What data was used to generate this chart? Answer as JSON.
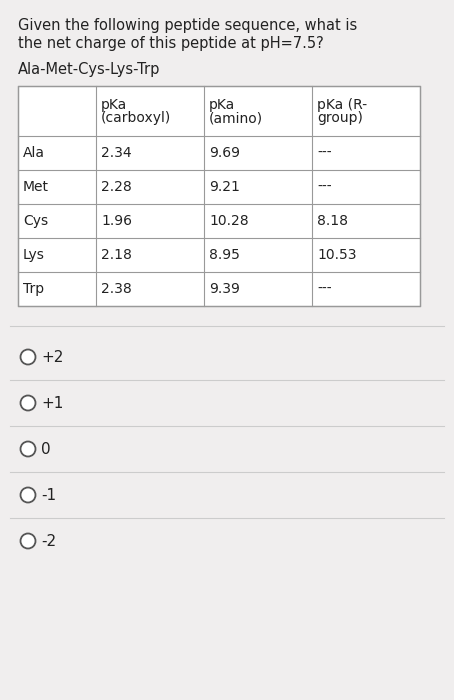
{
  "title_line1": "Given the following peptide sequence, what is",
  "title_line2": "the net charge of this peptide at pH=7.5?",
  "subtitle": "Ala-Met-Cys-Lys-Trp",
  "table_headers": [
    "",
    "pKa\n(carboxyl)",
    "pKa\n(amino)",
    "pKa (R-\ngroup)"
  ],
  "table_rows": [
    [
      "Ala",
      "2.34",
      "9.69",
      "---"
    ],
    [
      "Met",
      "2.28",
      "9.21",
      "---"
    ],
    [
      "Cys",
      "1.96",
      "10.28",
      "8.18"
    ],
    [
      "Lys",
      "2.18",
      "8.95",
      "10.53"
    ],
    [
      "Trp",
      "2.38",
      "9.39",
      "---"
    ]
  ],
  "options": [
    "+2",
    "+1",
    "0",
    "-1",
    "-2"
  ],
  "bg_color": "#f0eeee",
  "text_color": "#222222",
  "font_size_title": 10.5,
  "font_size_subtitle": 10.5,
  "font_size_table": 10,
  "font_size_options": 11
}
